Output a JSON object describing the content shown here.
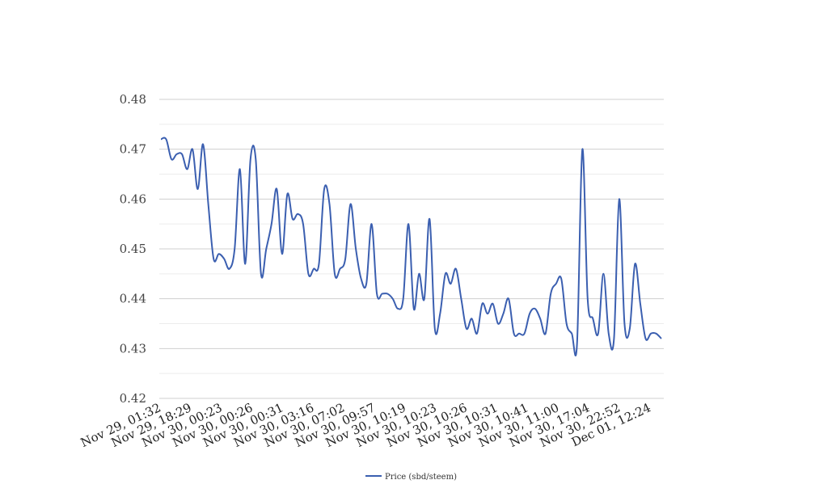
{
  "chart_data": {
    "type": "line",
    "title": "",
    "xlabel": "",
    "ylabel": "",
    "ylim": [
      0.42,
      0.48
    ],
    "y_ticks": [
      "0.48",
      "0.47",
      "0.46",
      "0.45",
      "0.44",
      "0.43",
      "0.42"
    ],
    "y_tick_values": [
      0.48,
      0.47,
      0.46,
      0.45,
      0.44,
      0.43,
      0.42
    ],
    "x_tick_labels": [
      "Nov 29, 01:32",
      "Nov 29, 18:29",
      "Nov 30, 00:23",
      "Nov 30, 00:26",
      "Nov 30, 00:31",
      "Nov 30, 03:16",
      "Nov 30, 07:02",
      "Nov 30, 09:57",
      "Nov 30, 10:19",
      "Nov 30, 10:23",
      "Nov 30, 10:26",
      "Nov 30, 10:31",
      "Nov 30, 10:41",
      "Nov 30, 11:00",
      "Nov 30, 17:04",
      "Nov 30, 22:52",
      "Dec 01, 12:24"
    ],
    "grid": true,
    "legend_position": "bottom",
    "series": [
      {
        "name": "Price (sbd/steem)",
        "color": "#3b5fb0",
        "values": [
          0.472,
          0.472,
          0.468,
          0.469,
          0.469,
          0.466,
          0.47,
          0.462,
          0.471,
          0.459,
          0.448,
          0.449,
          0.448,
          0.446,
          0.45,
          0.466,
          0.447,
          0.468,
          0.468,
          0.445,
          0.45,
          0.455,
          0.462,
          0.449,
          0.461,
          0.456,
          0.457,
          0.455,
          0.445,
          0.446,
          0.447,
          0.462,
          0.459,
          0.445,
          0.446,
          0.448,
          0.459,
          0.45,
          0.444,
          0.443,
          0.455,
          0.441,
          0.441,
          0.441,
          0.44,
          0.438,
          0.44,
          0.455,
          0.438,
          0.445,
          0.44,
          0.456,
          0.434,
          0.437,
          0.445,
          0.443,
          0.446,
          0.44,
          0.434,
          0.436,
          0.433,
          0.439,
          0.437,
          0.439,
          0.435,
          0.437,
          0.44,
          0.433,
          0.433,
          0.433,
          0.437,
          0.438,
          0.436,
          0.433,
          0.441,
          0.443,
          0.444,
          0.435,
          0.433,
          0.431,
          0.47,
          0.44,
          0.436,
          0.433,
          0.445,
          0.433,
          0.432,
          0.46,
          0.435,
          0.434,
          0.447,
          0.439,
          0.432,
          0.433,
          0.433,
          0.432
        ]
      }
    ]
  }
}
